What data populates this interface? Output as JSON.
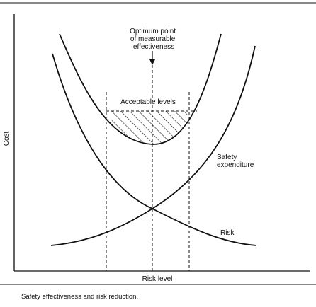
{
  "diagram": {
    "annotation_optimum": [
      "Optimum point",
      "of measurable",
      "effectiveness"
    ],
    "acceptable_levels": "Acceptable levels",
    "safety_expenditure": [
      "Safety",
      "expenditure"
    ],
    "risk": "Risk",
    "y_axis": "Cost",
    "x_axis": "Risk level",
    "caption": "Safety effectiveness and risk reduction."
  }
}
